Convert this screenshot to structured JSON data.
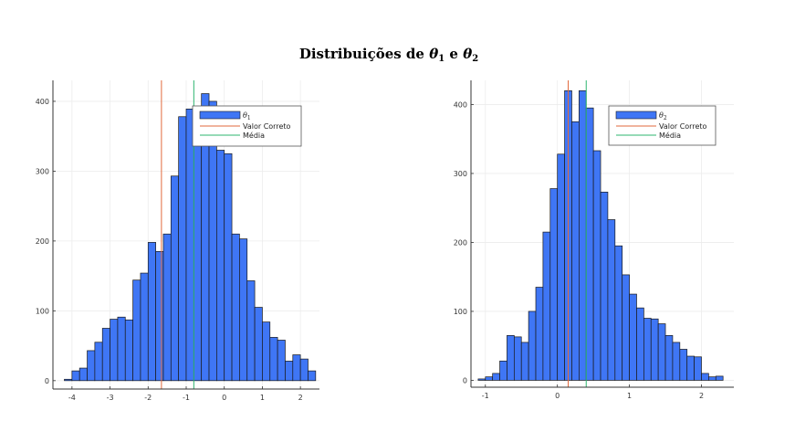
{
  "figure": {
    "title_prefix": "Distribuições de ",
    "title_var1": "θ",
    "title_sub1": "1",
    "title_mid": " e ",
    "title_var2": "θ",
    "title_sub2": "2"
  },
  "colors": {
    "bars": "#3f76f5",
    "bar_edge": "#1a1a1a",
    "valor_correto": "#e26a3c",
    "media": "#2db56f",
    "grid": "#ececec",
    "axis": "#333333"
  },
  "chart_data": [
    {
      "type": "bar",
      "legend": {
        "position": "top-right",
        "entries": [
          {
            "label": "θ",
            "sub": "1"
          },
          {
            "label": "Valor Correto"
          },
          {
            "label": "Média"
          }
        ]
      },
      "xlim": [
        -4.5,
        2.5
      ],
      "ylim": [
        -12,
        430
      ],
      "xticks": [
        -4,
        -3,
        -2,
        -1,
        0,
        1,
        2
      ],
      "yticks": [
        0,
        100,
        200,
        300,
        400
      ],
      "grid": true,
      "bin_start": -4.2,
      "bin_width": 0.2,
      "values": [
        2,
        14,
        18,
        43,
        55,
        75,
        88,
        91,
        87,
        144,
        154,
        198,
        185,
        210,
        293,
        378,
        389,
        386,
        411,
        400,
        330,
        325,
        210,
        203,
        143,
        105,
        84,
        62,
        58,
        28,
        37,
        31,
        14
      ],
      "vlines": {
        "valor_correto": -1.65,
        "media": -0.8
      }
    },
    {
      "type": "bar",
      "legend": {
        "position": "top-right",
        "entries": [
          {
            "label": "θ",
            "sub": "2"
          },
          {
            "label": "Valor Correto"
          },
          {
            "label": "Média"
          }
        ]
      },
      "xlim": [
        -1.2,
        2.45
      ],
      "ylim": [
        -10,
        435
      ],
      "xticks": [
        -1,
        0,
        1,
        2
      ],
      "yticks": [
        0,
        100,
        200,
        300,
        400
      ],
      "grid": true,
      "bin_start": -1.1,
      "bin_width": 0.1,
      "values": [
        2,
        5,
        10,
        28,
        65,
        63,
        55,
        100,
        135,
        215,
        278,
        328,
        420,
        375,
        420,
        395,
        333,
        273,
        233,
        195,
        153,
        125,
        105,
        90,
        89,
        82,
        65,
        55,
        45,
        35,
        34,
        10,
        5,
        6
      ],
      "vlines": {
        "valor_correto": 0.15,
        "media": 0.4
      }
    }
  ]
}
